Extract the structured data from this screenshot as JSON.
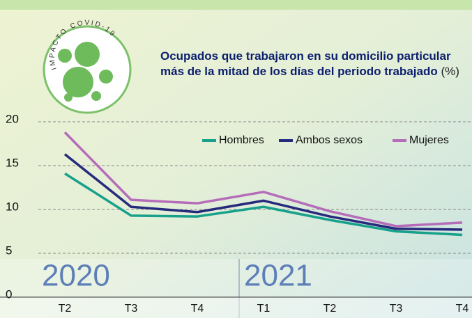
{
  "chart_data": {
    "type": "line",
    "badge": "IMPACTO COVID-19",
    "title": "Ocupados que trabajaron en su domicilio particular más de la mitad de los días del periodo trabajado",
    "unit": "(%)",
    "annotations": [
      "2020",
      "2021"
    ],
    "categories": [
      "T2",
      "T3",
      "T4",
      "T1",
      "T2",
      "T3",
      "T4"
    ],
    "series": [
      {
        "name": "Hombres",
        "color": "#17a08a",
        "values": [
          14.1,
          9.3,
          9.2,
          10.3,
          8.8,
          7.5,
          7.1
        ]
      },
      {
        "name": "Ambos sexos",
        "color": "#262a7c",
        "values": [
          16.3,
          10.3,
          9.7,
          11.0,
          9.2,
          7.8,
          7.7
        ]
      },
      {
        "name": "Mujeres",
        "color": "#b56cb9",
        "values": [
          18.8,
          11.1,
          10.7,
          12.0,
          9.8,
          8.1,
          8.5
        ]
      }
    ],
    "ylim": [
      0,
      20
    ],
    "yticks": [
      0,
      5,
      10,
      15,
      20
    ],
    "grid": true,
    "legend": "top-right"
  }
}
